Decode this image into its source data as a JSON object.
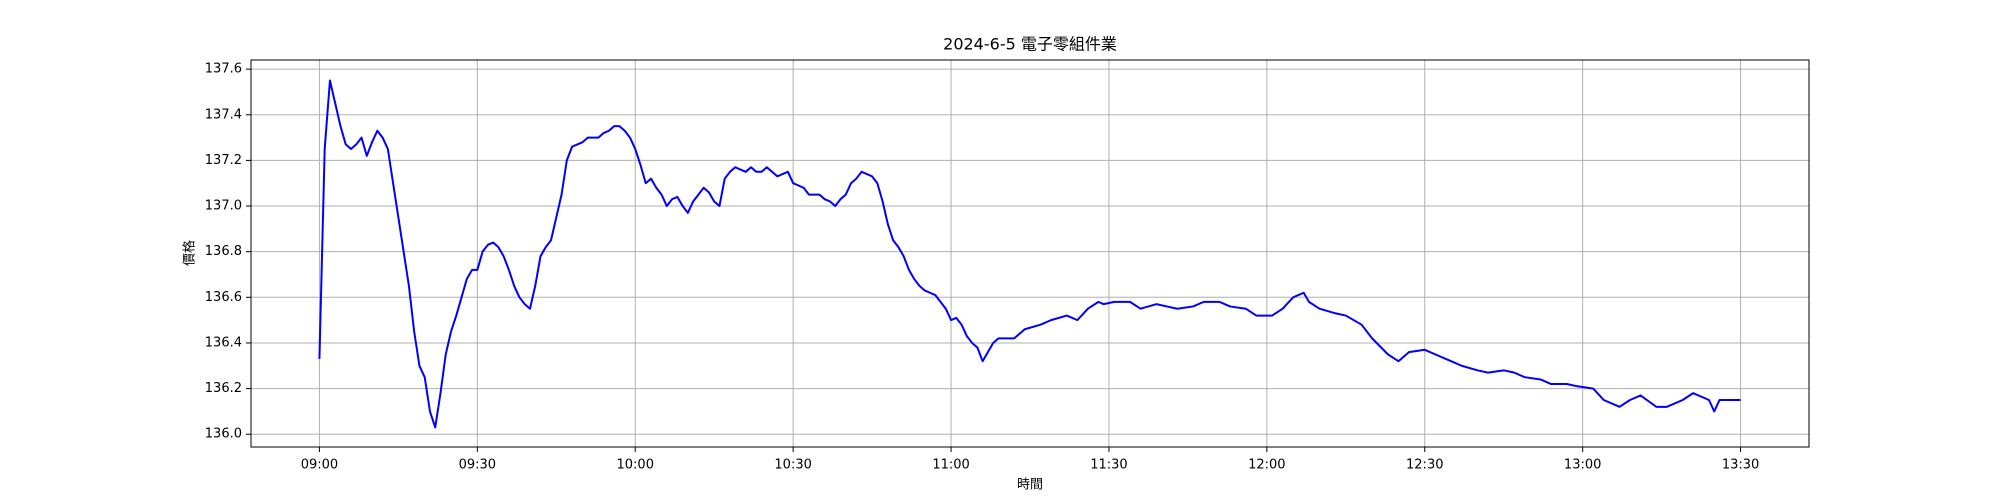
{
  "chart_data": {
    "type": "line",
    "title": "2024-6-5 電子零組件業",
    "x_label": "時間",
    "y_label": "價格",
    "color": "#0000ff",
    "grid": true,
    "xlim": [
      "08:47",
      "13:43"
    ],
    "xticks": [
      "09:00",
      "09:30",
      "10:00",
      "10:30",
      "11:00",
      "11:30",
      "12:00",
      "12:30",
      "13:00",
      "13:30"
    ],
    "ylim": [
      135.944,
      137.64
    ],
    "yticks": [
      {
        "value": 136,
        "label": "136.0"
      },
      136.2,
      136.4,
      136.6,
      136.8,
      {
        "value": 137,
        "label": "137.0"
      },
      137.2,
      137.4,
      137.6
    ],
    "x": [
      "09:00",
      "09:01",
      "09:02",
      "09:03",
      "09:04",
      "09:05",
      "09:06",
      "09:07",
      "09:08",
      "09:09",
      "09:10",
      "09:11",
      "09:12",
      "09:13",
      "09:14",
      "09:15",
      "09:16",
      "09:17",
      "09:18",
      "09:19",
      "09:20",
      "09:21",
      "09:22",
      "09:23",
      "09:24",
      "09:25",
      "09:26",
      "09:27",
      "09:28",
      "09:29",
      "09:30",
      "09:31",
      "09:32",
      "09:33",
      "09:34",
      "09:35",
      "09:36",
      "09:37",
      "09:38",
      "09:39",
      "09:40",
      "09:41",
      "09:42",
      "09:43",
      "09:44",
      "09:45",
      "09:46",
      "09:47",
      "09:48",
      "09:49",
      "09:50",
      "09:51",
      "09:52",
      "09:53",
      "09:54",
      "09:55",
      "09:56",
      "09:57",
      "09:58",
      "09:59",
      "10:00",
      "10:01",
      "10:02",
      "10:03",
      "10:04",
      "10:05",
      "10:06",
      "10:07",
      "10:08",
      "10:09",
      "10:10",
      "10:11",
      "10:12",
      "10:13",
      "10:14",
      "10:15",
      "10:16",
      "10:17",
      "10:18",
      "10:19",
      "10:20",
      "10:21",
      "10:22",
      "10:23",
      "10:24",
      "10:25",
      "10:26",
      "10:27",
      "10:28",
      "10:29",
      "10:30",
      "10:31",
      "10:32",
      "10:33",
      "10:34",
      "10:35",
      "10:36",
      "10:37",
      "10:38",
      "10:39",
      "10:40",
      "10:41",
      "10:42",
      "10:43",
      "10:44",
      "10:45",
      "10:46",
      "10:47",
      "10:48",
      "10:49",
      "10:50",
      "10:51",
      "10:52",
      "10:53",
      "10:54",
      "10:55",
      "10:56",
      "10:57",
      "10:58",
      "10:59",
      "11:00",
      "11:01",
      "11:02",
      "11:03",
      "11:04",
      "11:05",
      "11:06",
      "11:07",
      "11:08",
      "11:09",
      "11:12",
      "11:14",
      "11:17",
      "11:19",
      "11:22",
      "11:24",
      "11:26",
      "11:28",
      "11:29",
      "11:31",
      "11:34",
      "11:36",
      "11:39",
      "11:41",
      "11:43",
      "11:46",
      "11:48",
      "11:51",
      "11:53",
      "11:56",
      "11:58",
      "12:01",
      "12:03",
      "12:05",
      "12:07",
      "12:08",
      "12:10",
      "12:13",
      "12:15",
      "12:18",
      "12:20",
      "12:23",
      "12:25",
      "12:27",
      "12:30",
      "12:32",
      "12:35",
      "12:37",
      "12:40",
      "12:42",
      "12:45",
      "12:47",
      "12:49",
      "12:52",
      "12:54",
      "12:57",
      "12:59",
      "13:02",
      "13:04",
      "13:07",
      "13:09",
      "13:11",
      "13:14",
      "13:16",
      "13:19",
      "13:21",
      "13:24",
      "13:25",
      "13:26",
      "13:30"
    ],
    "values": [
      136.33,
      137.25,
      137.55,
      137.45,
      137.35,
      137.27,
      137.25,
      137.27,
      137.3,
      137.22,
      137.28,
      137.33,
      137.3,
      137.25,
      137.1,
      136.95,
      136.8,
      136.65,
      136.45,
      136.3,
      136.25,
      136.1,
      136.03,
      136.18,
      136.35,
      136.45,
      136.52,
      136.6,
      136.68,
      136.72,
      136.72,
      136.8,
      136.83,
      136.84,
      136.82,
      136.78,
      136.72,
      136.65,
      136.6,
      136.57,
      136.55,
      136.65,
      136.78,
      136.82,
      136.85,
      136.95,
      137.05,
      137.2,
      137.26,
      137.27,
      137.28,
      137.3,
      137.3,
      137.3,
      137.32,
      137.33,
      137.35,
      137.35,
      137.33,
      137.3,
      137.25,
      137.18,
      137.1,
      137.12,
      137.08,
      137.05,
      137.0,
      137.03,
      137.04,
      137.0,
      136.97,
      137.02,
      137.05,
      137.08,
      137.06,
      137.02,
      137.0,
      137.12,
      137.15,
      137.17,
      137.16,
      137.15,
      137.17,
      137.15,
      137.15,
      137.17,
      137.15,
      137.13,
      137.14,
      137.15,
      137.1,
      137.09,
      137.08,
      137.05,
      137.05,
      137.05,
      137.03,
      137.02,
      137.0,
      137.03,
      137.05,
      137.1,
      137.12,
      137.15,
      137.14,
      137.13,
      137.1,
      137.02,
      136.92,
      136.85,
      136.82,
      136.78,
      136.72,
      136.68,
      136.65,
      136.63,
      136.62,
      136.61,
      136.58,
      136.55,
      136.5,
      136.51,
      136.48,
      136.43,
      136.4,
      136.38,
      136.32,
      136.36,
      136.4,
      136.42,
      136.42,
      136.46,
      136.48,
      136.5,
      136.52,
      136.5,
      136.55,
      136.58,
      136.57,
      136.58,
      136.58,
      136.55,
      136.57,
      136.56,
      136.55,
      136.56,
      136.58,
      136.58,
      136.56,
      136.55,
      136.52,
      136.52,
      136.55,
      136.6,
      136.62,
      136.58,
      136.55,
      136.53,
      136.52,
      136.48,
      136.42,
      136.35,
      136.32,
      136.36,
      136.37,
      136.35,
      136.32,
      136.3,
      136.28,
      136.27,
      136.28,
      136.27,
      136.25,
      136.24,
      136.22,
      136.22,
      136.21,
      136.2,
      136.15,
      136.12,
      136.15,
      136.17,
      136.12,
      136.12,
      136.15,
      136.18,
      136.15,
      136.1,
      136.15,
      136.15
    ]
  }
}
